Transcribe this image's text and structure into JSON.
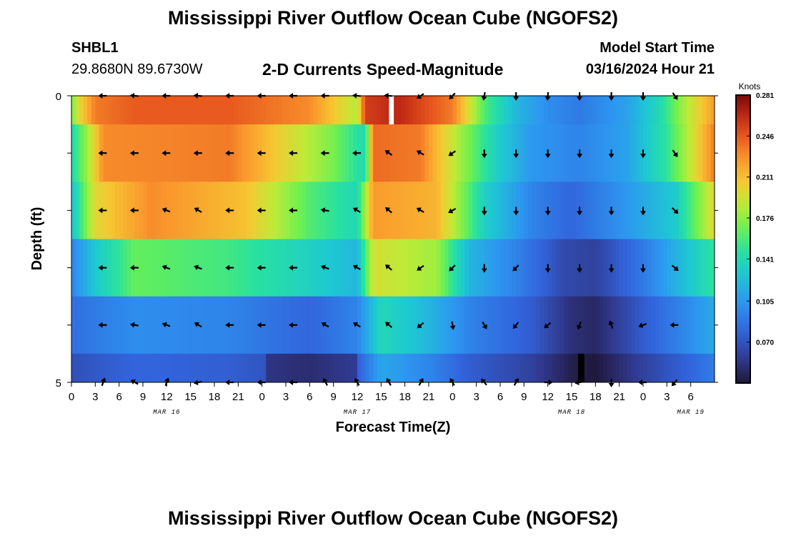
{
  "header": {
    "title": "Mississippi River Outflow Ocean Cube (NGOFS2)",
    "station": "SHBL1",
    "coords": "29.8680N  89.6730W",
    "subtitle": "2-D Currents Speed-Magnitude",
    "model_start_label": "Model Start Time",
    "model_start_value": "03/16/2024 Hour 21"
  },
  "footer": {
    "title": "Mississippi River Outflow Ocean Cube (NGOFS2)"
  },
  "chart_data": {
    "type": "heatmap",
    "title": "2-D Currents Speed-Magnitude",
    "xlabel": "Forecast Time(Z)",
    "ylabel": "Depth (ft)",
    "colorbar_label": "Knots",
    "colorbar_ticks": [
      "0.281",
      "0.246",
      "0.211",
      "0.176",
      "0.141",
      "0.105",
      "0.070"
    ],
    "colorbar_range": [
      0.035,
      0.281
    ],
    "x_range_hours": [
      0,
      81
    ],
    "x_tick_labels": [
      "0",
      "3",
      "6",
      "9",
      "12",
      "15",
      "18",
      "21",
      "0",
      "3",
      "6",
      "9",
      "12",
      "15",
      "18",
      "21",
      "0",
      "3",
      "6",
      "9",
      "12",
      "15",
      "18",
      "21",
      "0",
      "3",
      "6"
    ],
    "date_labels": [
      {
        "label": "MAR 16",
        "hour": 12
      },
      {
        "label": "MAR 17",
        "hour": 36
      },
      {
        "label": "MAR 18",
        "hour": 63
      },
      {
        "label": "MAR 19",
        "hour": 78
      }
    ],
    "y_range": [
      0,
      5
    ],
    "y_tick_labels": [
      "0",
      "5"
    ],
    "layer_depths": [
      0,
      1,
      2,
      3,
      4,
      5
    ],
    "layer_keyframes": [
      [
        [
          0,
          0.17
        ],
        [
          1,
          0.2
        ],
        [
          3,
          0.235
        ],
        [
          8,
          0.245
        ],
        [
          20,
          0.245
        ],
        [
          30,
          0.23
        ],
        [
          36,
          0.185
        ],
        [
          37,
          0.255
        ],
        [
          41,
          0.265
        ],
        [
          48,
          0.235
        ],
        [
          52,
          0.16
        ],
        [
          56,
          0.12
        ],
        [
          60,
          0.1
        ],
        [
          64,
          0.09
        ],
        [
          70,
          0.11
        ],
        [
          74,
          0.14
        ],
        [
          77,
          0.18
        ],
        [
          81,
          0.225
        ]
      ],
      [
        [
          0,
          0.14
        ],
        [
          2,
          0.18
        ],
        [
          4,
          0.23
        ],
        [
          20,
          0.235
        ],
        [
          27,
          0.2
        ],
        [
          33,
          0.17
        ],
        [
          37,
          0.14
        ],
        [
          38,
          0.24
        ],
        [
          44,
          0.235
        ],
        [
          49,
          0.18
        ],
        [
          54,
          0.13
        ],
        [
          58,
          0.105
        ],
        [
          64,
          0.095
        ],
        [
          70,
          0.11
        ],
        [
          75,
          0.15
        ],
        [
          78,
          0.19
        ],
        [
          81,
          0.235
        ]
      ],
      [
        [
          0,
          0.125
        ],
        [
          3,
          0.2
        ],
        [
          10,
          0.23
        ],
        [
          22,
          0.21
        ],
        [
          30,
          0.16
        ],
        [
          36,
          0.14
        ],
        [
          38,
          0.225
        ],
        [
          46,
          0.215
        ],
        [
          52,
          0.135
        ],
        [
          58,
          0.095
        ],
        [
          63,
          0.08
        ],
        [
          70,
          0.105
        ],
        [
          76,
          0.13
        ],
        [
          81,
          0.2
        ]
      ],
      [
        [
          0,
          0.095
        ],
        [
          3,
          0.13
        ],
        [
          8,
          0.165
        ],
        [
          20,
          0.155
        ],
        [
          30,
          0.135
        ],
        [
          36,
          0.12
        ],
        [
          38,
          0.195
        ],
        [
          46,
          0.18
        ],
        [
          50,
          0.12
        ],
        [
          57,
          0.09
        ],
        [
          62,
          0.065
        ],
        [
          66,
          0.06
        ],
        [
          72,
          0.09
        ],
        [
          81,
          0.15
        ]
      ],
      [
        [
          0,
          0.085
        ],
        [
          8,
          0.1
        ],
        [
          20,
          0.095
        ],
        [
          30,
          0.08
        ],
        [
          36,
          0.095
        ],
        [
          39,
          0.14
        ],
        [
          45,
          0.12
        ],
        [
          50,
          0.095
        ],
        [
          58,
          0.075
        ],
        [
          63,
          0.05
        ],
        [
          66,
          0.045
        ],
        [
          72,
          0.075
        ],
        [
          78,
          0.1
        ],
        [
          81,
          0.115
        ]
      ]
    ],
    "arrow_hours": [
      4,
      8,
      12,
      16,
      20,
      24,
      28,
      32,
      36,
      40,
      44,
      48,
      52,
      56,
      60,
      64,
      68,
      72,
      76
    ],
    "arrow_angles_deg": [
      [
        180,
        175,
        180,
        175,
        180,
        180,
        180,
        180,
        175,
        175,
        215,
        225,
        260,
        270,
        265,
        270,
        270,
        270,
        305
      ],
      [
        180,
        180,
        180,
        180,
        180,
        180,
        180,
        180,
        180,
        145,
        150,
        215,
        270,
        270,
        270,
        270,
        270,
        270,
        305
      ],
      [
        180,
        180,
        160,
        150,
        180,
        180,
        180,
        170,
        150,
        140,
        150,
        210,
        270,
        270,
        270,
        270,
        270,
        270,
        315
      ],
      [
        180,
        180,
        160,
        160,
        180,
        180,
        180,
        160,
        150,
        140,
        215,
        225,
        270,
        225,
        270,
        270,
        270,
        270,
        320
      ],
      [
        180,
        170,
        160,
        150,
        180,
        180,
        180,
        150,
        150,
        140,
        220,
        280,
        300,
        230,
        220,
        250,
        110,
        200,
        180
      ],
      [
        70,
        150,
        70,
        190,
        180,
        180,
        180,
        120,
        120,
        120,
        60,
        120,
        130,
        60,
        0,
        190,
        270,
        180,
        230
      ]
    ],
    "data_gaps": [
      {
        "layer": 0,
        "hour_start": 40,
        "hour_end": 40.6,
        "color": "#ffffff"
      },
      {
        "layer": 5,
        "hour_start": 63.8,
        "hour_end": 64.6,
        "color": "#000000"
      }
    ]
  }
}
